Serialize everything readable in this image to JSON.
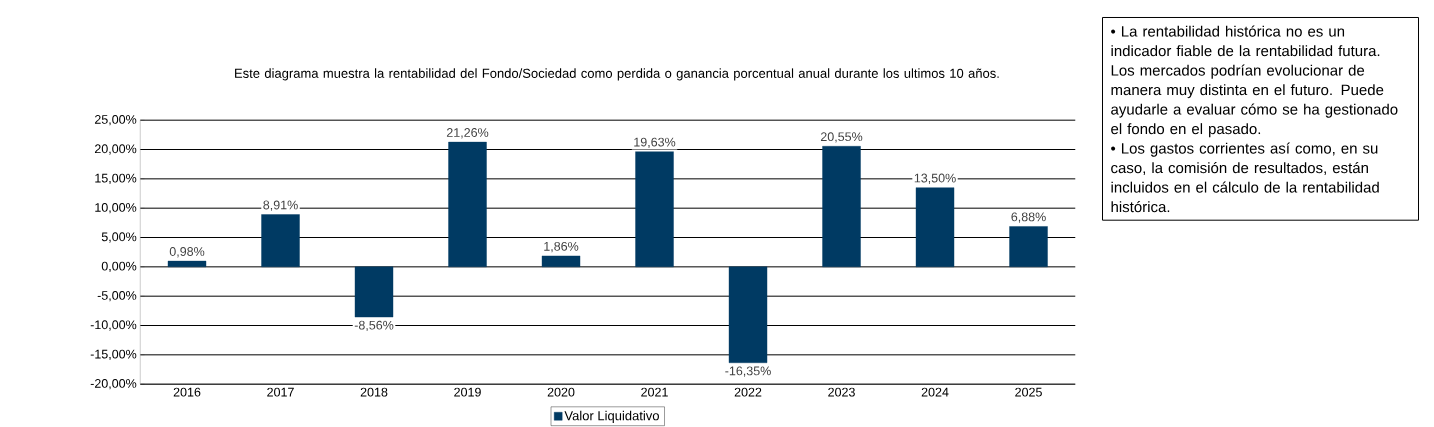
{
  "chart_data": {
    "type": "bar",
    "title": "Este diagrama  muestra la rentabilidad  del Fondo/Sociedad como perdida  o ganancia porcentual anual durante los ultimos 10 años.",
    "categories": [
      "2016",
      "2017",
      "2018",
      "2019",
      "2020",
      "2021",
      "2022",
      "2023",
      "2024",
      "2025"
    ],
    "series": [
      {
        "name": "Valor Liquidativo",
        "color": "#003a63",
        "values": [
          0.98,
          8.91,
          -8.56,
          21.26,
          1.86,
          19.63,
          -16.35,
          20.55,
          13.5,
          6.88
        ],
        "value_labels": [
          "0,98%",
          "8,91%",
          "-8,56%",
          "21,26%",
          "1,86%",
          "19,63%",
          "-16,35%",
          "20,55%",
          "13,50%",
          "6,88%"
        ]
      }
    ],
    "ylim": [
      -20,
      25
    ],
    "yticks": [
      {
        "value": -20,
        "label": "-20,00%"
      },
      {
        "value": -15,
        "label": "-15,00%"
      },
      {
        "value": -10,
        "label": "-10,00%"
      },
      {
        "value": -5,
        "label": "-5,00%"
      },
      {
        "value": 0,
        "label": "0,00%"
      },
      {
        "value": 5,
        "label": "5,00%"
      },
      {
        "value": 10,
        "label": "10,00%"
      },
      {
        "value": 15,
        "label": "15,00%"
      },
      {
        "value": 20,
        "label": "20,00%"
      },
      {
        "value": 25,
        "label": "25,00%"
      }
    ],
    "grid": "y",
    "legend": "bottom",
    "annotations": [
      "• La rentabilidad  histórica no es un indicador  fiable de la rentabilidad  futura. Los mercados  podrían evolucionar de manera  muy distinta  en el futuro. Puede ayudarle a evaluar cómo se ha gestionado el fondo en el pasado.",
      "• Los gastos corrientes así como,  en su caso, la comisión  de resultados, están incluidos  en el cálculo de la rentabilidad  histórica."
    ]
  }
}
